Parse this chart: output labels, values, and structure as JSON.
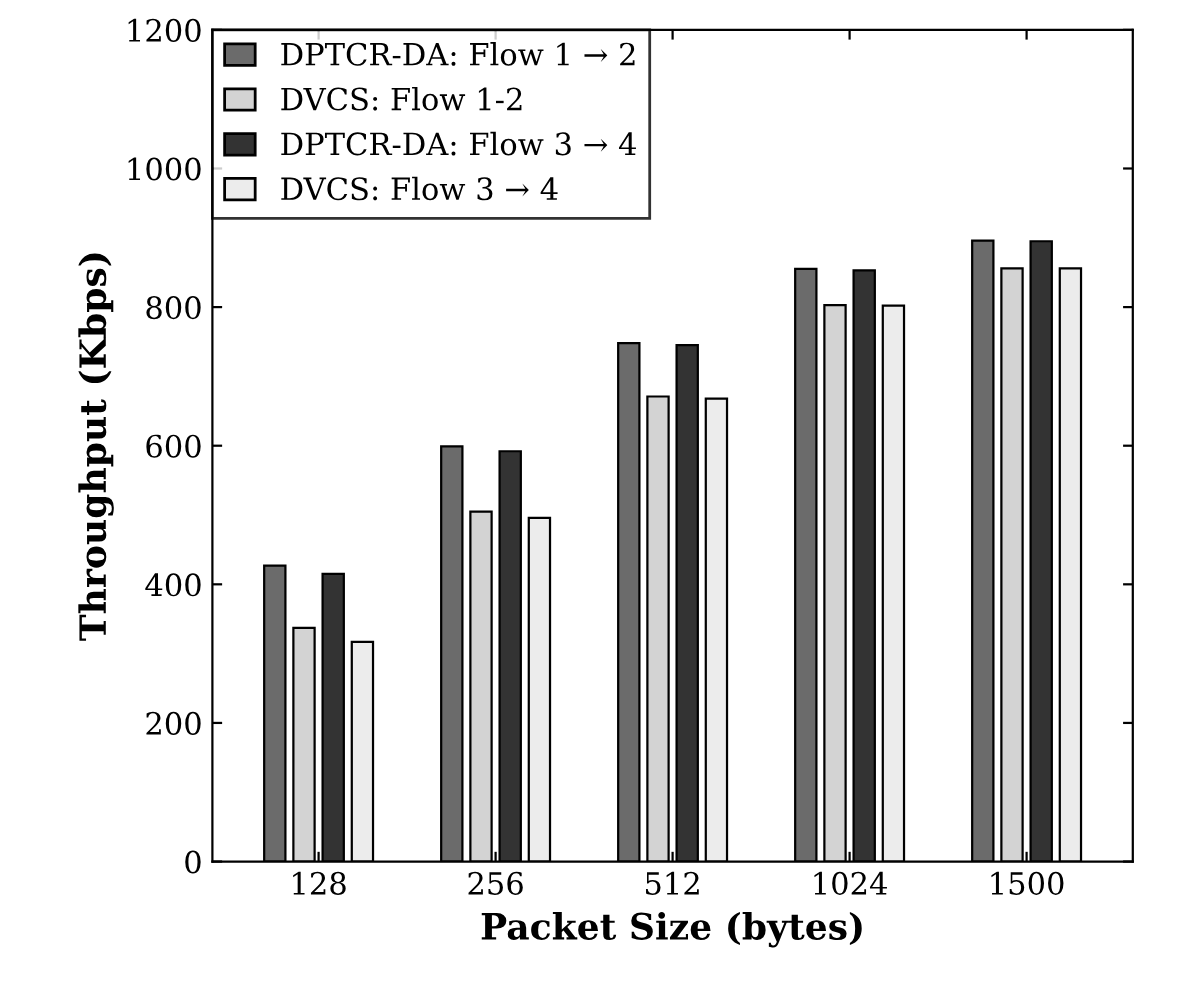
{
  "chart_data": {
    "type": "bar",
    "xlabel": "Packet Size (bytes)",
    "ylabel": "Throughput (Kbps)",
    "categories": [
      "128",
      "256",
      "512",
      "1024",
      "1500"
    ],
    "series": [
      {
        "name": "DPTCR-DA: Flow 1 → 2",
        "color": "#6b6b6b",
        "values": [
          427,
          599,
          748,
          855,
          896
        ]
      },
      {
        "name": "DVCS: Flow 1-2",
        "color": "#d3d3d3",
        "values": [
          337,
          505,
          671,
          803,
          856
        ]
      },
      {
        "name": "DPTCR-DA: Flow 3 → 4",
        "color": "#333333",
        "values": [
          415,
          592,
          745,
          853,
          895
        ]
      },
      {
        "name": "DVCS: Flow 3 → 4",
        "color": "#ececec",
        "values": [
          317,
          496,
          668,
          802,
          856
        ]
      }
    ],
    "ylim": [
      0,
      1200
    ],
    "yticks": [
      0,
      200,
      400,
      600,
      800,
      1000,
      1200
    ],
    "grid": false,
    "legend": "top left"
  }
}
